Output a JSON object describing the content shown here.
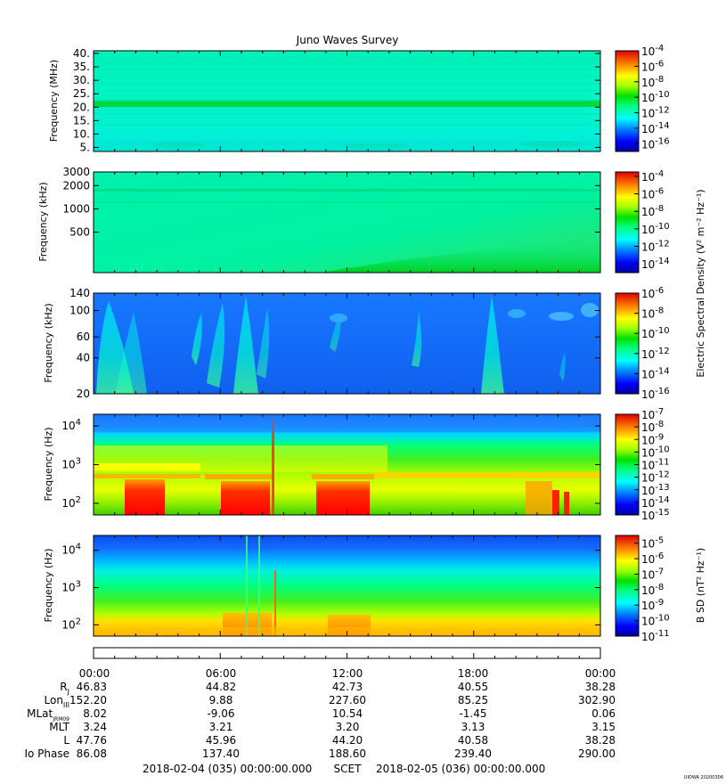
{
  "title": "Juno Waves Survey",
  "stamp": "UIOWA 20200306",
  "chart_data": [
    {
      "type": "heatmap",
      "name": "panel-1",
      "ylabel": "Frequency (MHz)",
      "yscale": "linear",
      "ylim": [
        3.5,
        41
      ],
      "yticks": [
        {
          "value": 40,
          "label": "40."
        },
        {
          "value": 35,
          "label": "35."
        },
        {
          "value": 30,
          "label": "30."
        },
        {
          "value": 25,
          "label": "25."
        },
        {
          "value": 20,
          "label": "20."
        },
        {
          "value": 15,
          "label": "15."
        },
        {
          "value": 10,
          "label": "10."
        },
        {
          "value": 5,
          "label": "5."
        }
      ],
      "colorbar": {
        "min_exp": -17,
        "max_exp": -4,
        "ticks": [
          {
            "exp": -4,
            "label": "10",
            "sup": "-4"
          },
          {
            "exp": -6,
            "label": "10",
            "sup": "-6"
          },
          {
            "exp": -8,
            "label": "10",
            "sup": "-8"
          },
          {
            "exp": -10,
            "label": "10",
            "sup": "-10"
          },
          {
            "exp": -12,
            "label": "10",
            "sup": "-12"
          },
          {
            "exp": -14,
            "label": "10",
            "sup": "-14"
          },
          {
            "exp": -16,
            "label": "10",
            "sup": "-16"
          }
        ]
      }
    },
    {
      "type": "heatmap",
      "name": "panel-2",
      "ylabel": "Frequency (kHz)",
      "yscale": "log",
      "ylim": [
        150,
        3000
      ],
      "yticks": [
        {
          "value": 3000,
          "label": "3000"
        },
        {
          "value": 2000,
          "label": "2000"
        },
        {
          "value": 1000,
          "label": "1000"
        },
        {
          "value": 500,
          "label": "500"
        }
      ],
      "colorbar": {
        "min_exp": -15,
        "max_exp": -3.5,
        "ticks": [
          {
            "exp": -4,
            "label": "10",
            "sup": "-4"
          },
          {
            "exp": -6,
            "label": "10",
            "sup": "-6"
          },
          {
            "exp": -8,
            "label": "10",
            "sup": "-8"
          },
          {
            "exp": -10,
            "label": "10",
            "sup": "-10"
          },
          {
            "exp": -12,
            "label": "10",
            "sup": "-12"
          },
          {
            "exp": -14,
            "label": "10",
            "sup": "-14"
          }
        ]
      }
    },
    {
      "type": "heatmap",
      "name": "panel-3",
      "ylabel": "Frequency (kHz)",
      "yscale": "log",
      "ylim": [
        20,
        140
      ],
      "yticks": [
        {
          "value": 140,
          "label": "140"
        },
        {
          "value": 100,
          "label": "100"
        },
        {
          "value": 60,
          "label": "60"
        },
        {
          "value": 40,
          "label": "40"
        },
        {
          "value": 20,
          "label": "20"
        }
      ],
      "colorbar": {
        "min_exp": -16,
        "max_exp": -6,
        "ticks": [
          {
            "exp": -6,
            "label": "10",
            "sup": "-6"
          },
          {
            "exp": -8,
            "label": "10",
            "sup": "-8"
          },
          {
            "exp": -10,
            "label": "10",
            "sup": "-10"
          },
          {
            "exp": -12,
            "label": "10",
            "sup": "-12"
          },
          {
            "exp": -14,
            "label": "10",
            "sup": "-14"
          },
          {
            "exp": -16,
            "label": "10",
            "sup": "-16"
          }
        ]
      }
    },
    {
      "type": "heatmap",
      "name": "panel-4",
      "ylabel": "Frequency (Hz)",
      "yscale": "log",
      "ylim": [
        50,
        20000
      ],
      "yticks": [
        {
          "value": 10000,
          "label": "10",
          "sup": "4"
        },
        {
          "value": 1000,
          "label": "10",
          "sup": "3"
        },
        {
          "value": 100,
          "label": "10",
          "sup": "2"
        }
      ],
      "colorbar": {
        "min_exp": -15,
        "max_exp": -7,
        "ticks": [
          {
            "exp": -7,
            "label": "10",
            "sup": "-7"
          },
          {
            "exp": -8,
            "label": "10",
            "sup": "-8"
          },
          {
            "exp": -9,
            "label": "10",
            "sup": "-9"
          },
          {
            "exp": -10,
            "label": "10",
            "sup": "-10"
          },
          {
            "exp": -11,
            "label": "10",
            "sup": "-11"
          },
          {
            "exp": -12,
            "label": "10",
            "sup": "-12"
          },
          {
            "exp": -13,
            "label": "10",
            "sup": "-13"
          },
          {
            "exp": -14,
            "label": "10",
            "sup": "-14"
          },
          {
            "exp": -15,
            "label": "10",
            "sup": "-15"
          }
        ]
      }
    },
    {
      "type": "heatmap",
      "name": "panel-5",
      "ylabel": "Frequency (Hz)",
      "yscale": "log",
      "ylim": [
        50,
        25000
      ],
      "yticks": [
        {
          "value": 10000,
          "label": "10",
          "sup": "4"
        },
        {
          "value": 1000,
          "label": "10",
          "sup": "3"
        },
        {
          "value": 100,
          "label": "10",
          "sup": "2"
        }
      ],
      "colorbar": {
        "min_exp": -11,
        "max_exp": -4.5,
        "ticks": [
          {
            "exp": -5,
            "label": "10",
            "sup": "-5"
          },
          {
            "exp": -6,
            "label": "10",
            "sup": "-6"
          },
          {
            "exp": -7,
            "label": "10",
            "sup": "-7"
          },
          {
            "exp": -8,
            "label": "10",
            "sup": "-8"
          },
          {
            "exp": -9,
            "label": "10",
            "sup": "-9"
          },
          {
            "exp": -10,
            "label": "10",
            "sup": "-10"
          },
          {
            "exp": -11,
            "label": "10",
            "sup": "-11"
          }
        ]
      }
    }
  ],
  "colorbar_labels": {
    "electric_label": "Electric Spectral Density (V² m⁻² Hz⁻¹)",
    "magnetic_label": "B SD (nT² Hz⁻¹)"
  },
  "time_axis": {
    "columns": [
      "00:00",
      "06:00",
      "12:00",
      "18:00",
      "00:00"
    ],
    "start_scet": "2018-02-04 (035) 00:00:00.000",
    "scet_label": "SCET",
    "end_scet": "2018-02-05 (036) 00:00:00.000"
  },
  "ephemeris": [
    {
      "name": "RJ",
      "label": "R",
      "sub": "J",
      "values": [
        "46.83",
        "44.82",
        "42.73",
        "40.55",
        "38.28"
      ]
    },
    {
      "name": "LonIII",
      "label": "Lon",
      "sub": "III",
      "values": [
        "152.20",
        "9.88",
        "227.60",
        "85.25",
        "302.90"
      ]
    },
    {
      "name": "MLat",
      "label": "MLat",
      "sub": "JRM09",
      "values": [
        "8.02",
        "-9.06",
        "10.54",
        "-1.45",
        "0.06"
      ]
    },
    {
      "name": "MLT",
      "label": "MLT",
      "sub": "",
      "values": [
        "3.24",
        "3.21",
        "3.20",
        "3.13",
        "3.15"
      ]
    },
    {
      "name": "L",
      "label": "L",
      "sub": "",
      "values": [
        "47.76",
        "45.96",
        "44.20",
        "40.58",
        "38.28"
      ]
    },
    {
      "name": "IoPhase",
      "label": "Io Phase",
      "sub": "",
      "values": [
        "86.08",
        "137.40",
        "188.60",
        "239.40",
        "290.00"
      ]
    }
  ]
}
